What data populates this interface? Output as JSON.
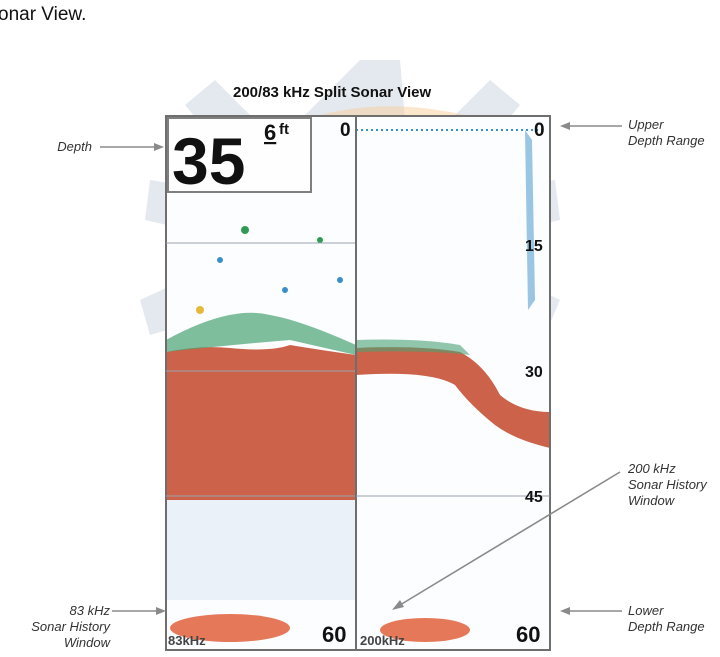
{
  "intro_text": "onar View.",
  "figure": {
    "title": "200/83 kHz Split Sonar View",
    "depth_digits": "35",
    "depth_decimal": "6",
    "depth_unit": "ft",
    "depth_scale_labels": [
      "0",
      "15",
      "30",
      "45",
      "60"
    ],
    "left_window_label": "83kHz",
    "right_window_label": "200kHz"
  },
  "callouts": {
    "depth": "Depth",
    "upper_range": [
      "Upper",
      "Depth Range"
    ],
    "lower_range": [
      "Lower",
      "Depth Range"
    ],
    "khz200": [
      "200 kHz",
      "Sonar History",
      "Window"
    ],
    "khz83": [
      "83 kHz",
      "Sonar History",
      "Window"
    ]
  },
  "colors": {
    "frame": "#6e6e6e",
    "bottom_fill": "#c8553a",
    "watermark_gray": "#d8dde4",
    "watermark_orange": "#fbe5c8",
    "arrow": "#8a8a8a"
  }
}
